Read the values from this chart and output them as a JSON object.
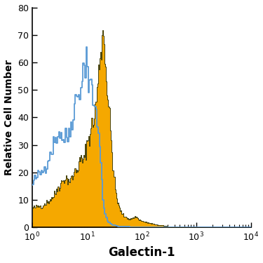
{
  "title": "",
  "xlabel": "Galectin-1",
  "ylabel": "Relative Cell Number",
  "ylim": [
    0,
    80
  ],
  "yticks": [
    0,
    10,
    20,
    30,
    40,
    50,
    60,
    70,
    80
  ],
  "xlabel_fontsize": 12,
  "ylabel_fontsize": 10,
  "tick_fontsize": 9,
  "filled_color": "#F5A800",
  "filled_edge_color": "#333300",
  "open_color": "#5B9BD5",
  "background_color": "#FFFFFF",
  "orange_x": [
    1.0,
    1.2,
    1.5,
    1.8,
    2.0,
    2.2,
    2.5,
    2.8,
    3.0,
    3.3,
    3.6,
    4.0,
    4.5,
    5.0,
    5.5,
    6.0,
    6.5,
    7.0,
    7.5,
    8.0,
    8.5,
    9.0,
    9.5,
    10.0,
    11.0,
    12.0,
    13.0,
    14.0,
    15.0,
    16.0,
    17.0,
    18.0,
    19.0,
    20.0,
    21.0,
    22.0,
    23.0,
    25.0,
    27.0,
    30.0,
    33.0,
    36.0,
    40.0,
    45.0,
    50.0,
    55.0,
    60.0,
    70.0,
    80.0,
    90.0,
    100.0,
    120.0,
    150.0,
    200.0,
    300.0,
    500.0,
    700.0,
    1000.0,
    2000.0,
    5000.0,
    10000.0
  ],
  "orange_y": [
    7.0,
    7.5,
    8.0,
    9.0,
    9.5,
    10.5,
    11.5,
    13.0,
    14.5,
    16.0,
    17.0,
    18.0,
    17.5,
    17.0,
    18.0,
    20.0,
    21.0,
    22.5,
    24.0,
    25.0,
    24.5,
    24.0,
    28.0,
    30.0,
    33.0,
    35.0,
    38.0,
    42.0,
    47.0,
    52.0,
    60.0,
    65.0,
    68.0,
    71.0,
    68.0,
    64.0,
    55.0,
    45.0,
    35.0,
    22.0,
    15.0,
    10.0,
    7.0,
    5.0,
    4.0,
    3.5,
    3.0,
    3.5,
    4.0,
    3.0,
    2.5,
    2.0,
    1.5,
    1.0,
    0.5,
    0.3,
    0.2,
    0.2,
    0.1,
    0.1,
    0.0
  ],
  "blue_x": [
    1.0,
    1.2,
    1.5,
    1.8,
    2.0,
    2.2,
    2.5,
    2.8,
    3.0,
    3.3,
    3.6,
    4.0,
    4.5,
    5.0,
    5.5,
    6.0,
    6.5,
    7.0,
    7.5,
    8.0,
    8.5,
    9.0,
    9.5,
    10.0,
    10.5,
    11.0,
    11.5,
    12.0,
    12.5,
    13.0,
    14.0,
    15.0,
    16.0,
    17.0,
    18.0,
    19.0,
    20.0,
    22.0,
    25.0,
    30.0,
    40.0,
    50.0,
    70.0,
    100.0,
    200.0,
    500.0,
    1000.0,
    2000.0,
    5000.0,
    10000.0
  ],
  "blue_y": [
    15.0,
    18.0,
    20.0,
    22.0,
    25.0,
    27.0,
    30.0,
    33.0,
    34.0,
    35.0,
    33.0,
    32.0,
    33.0,
    35.0,
    40.0,
    44.0,
    47.0,
    48.0,
    50.0,
    53.0,
    55.0,
    57.0,
    59.0,
    65.0,
    62.0,
    51.0,
    52.0,
    51.0,
    50.0,
    48.0,
    45.0,
    42.0,
    38.0,
    34.0,
    30.0,
    20.0,
    10.0,
    5.0,
    2.0,
    1.0,
    0.5,
    0.3,
    0.2,
    0.1,
    0.1,
    0.1,
    0.1,
    0.0,
    0.0,
    0.0
  ]
}
